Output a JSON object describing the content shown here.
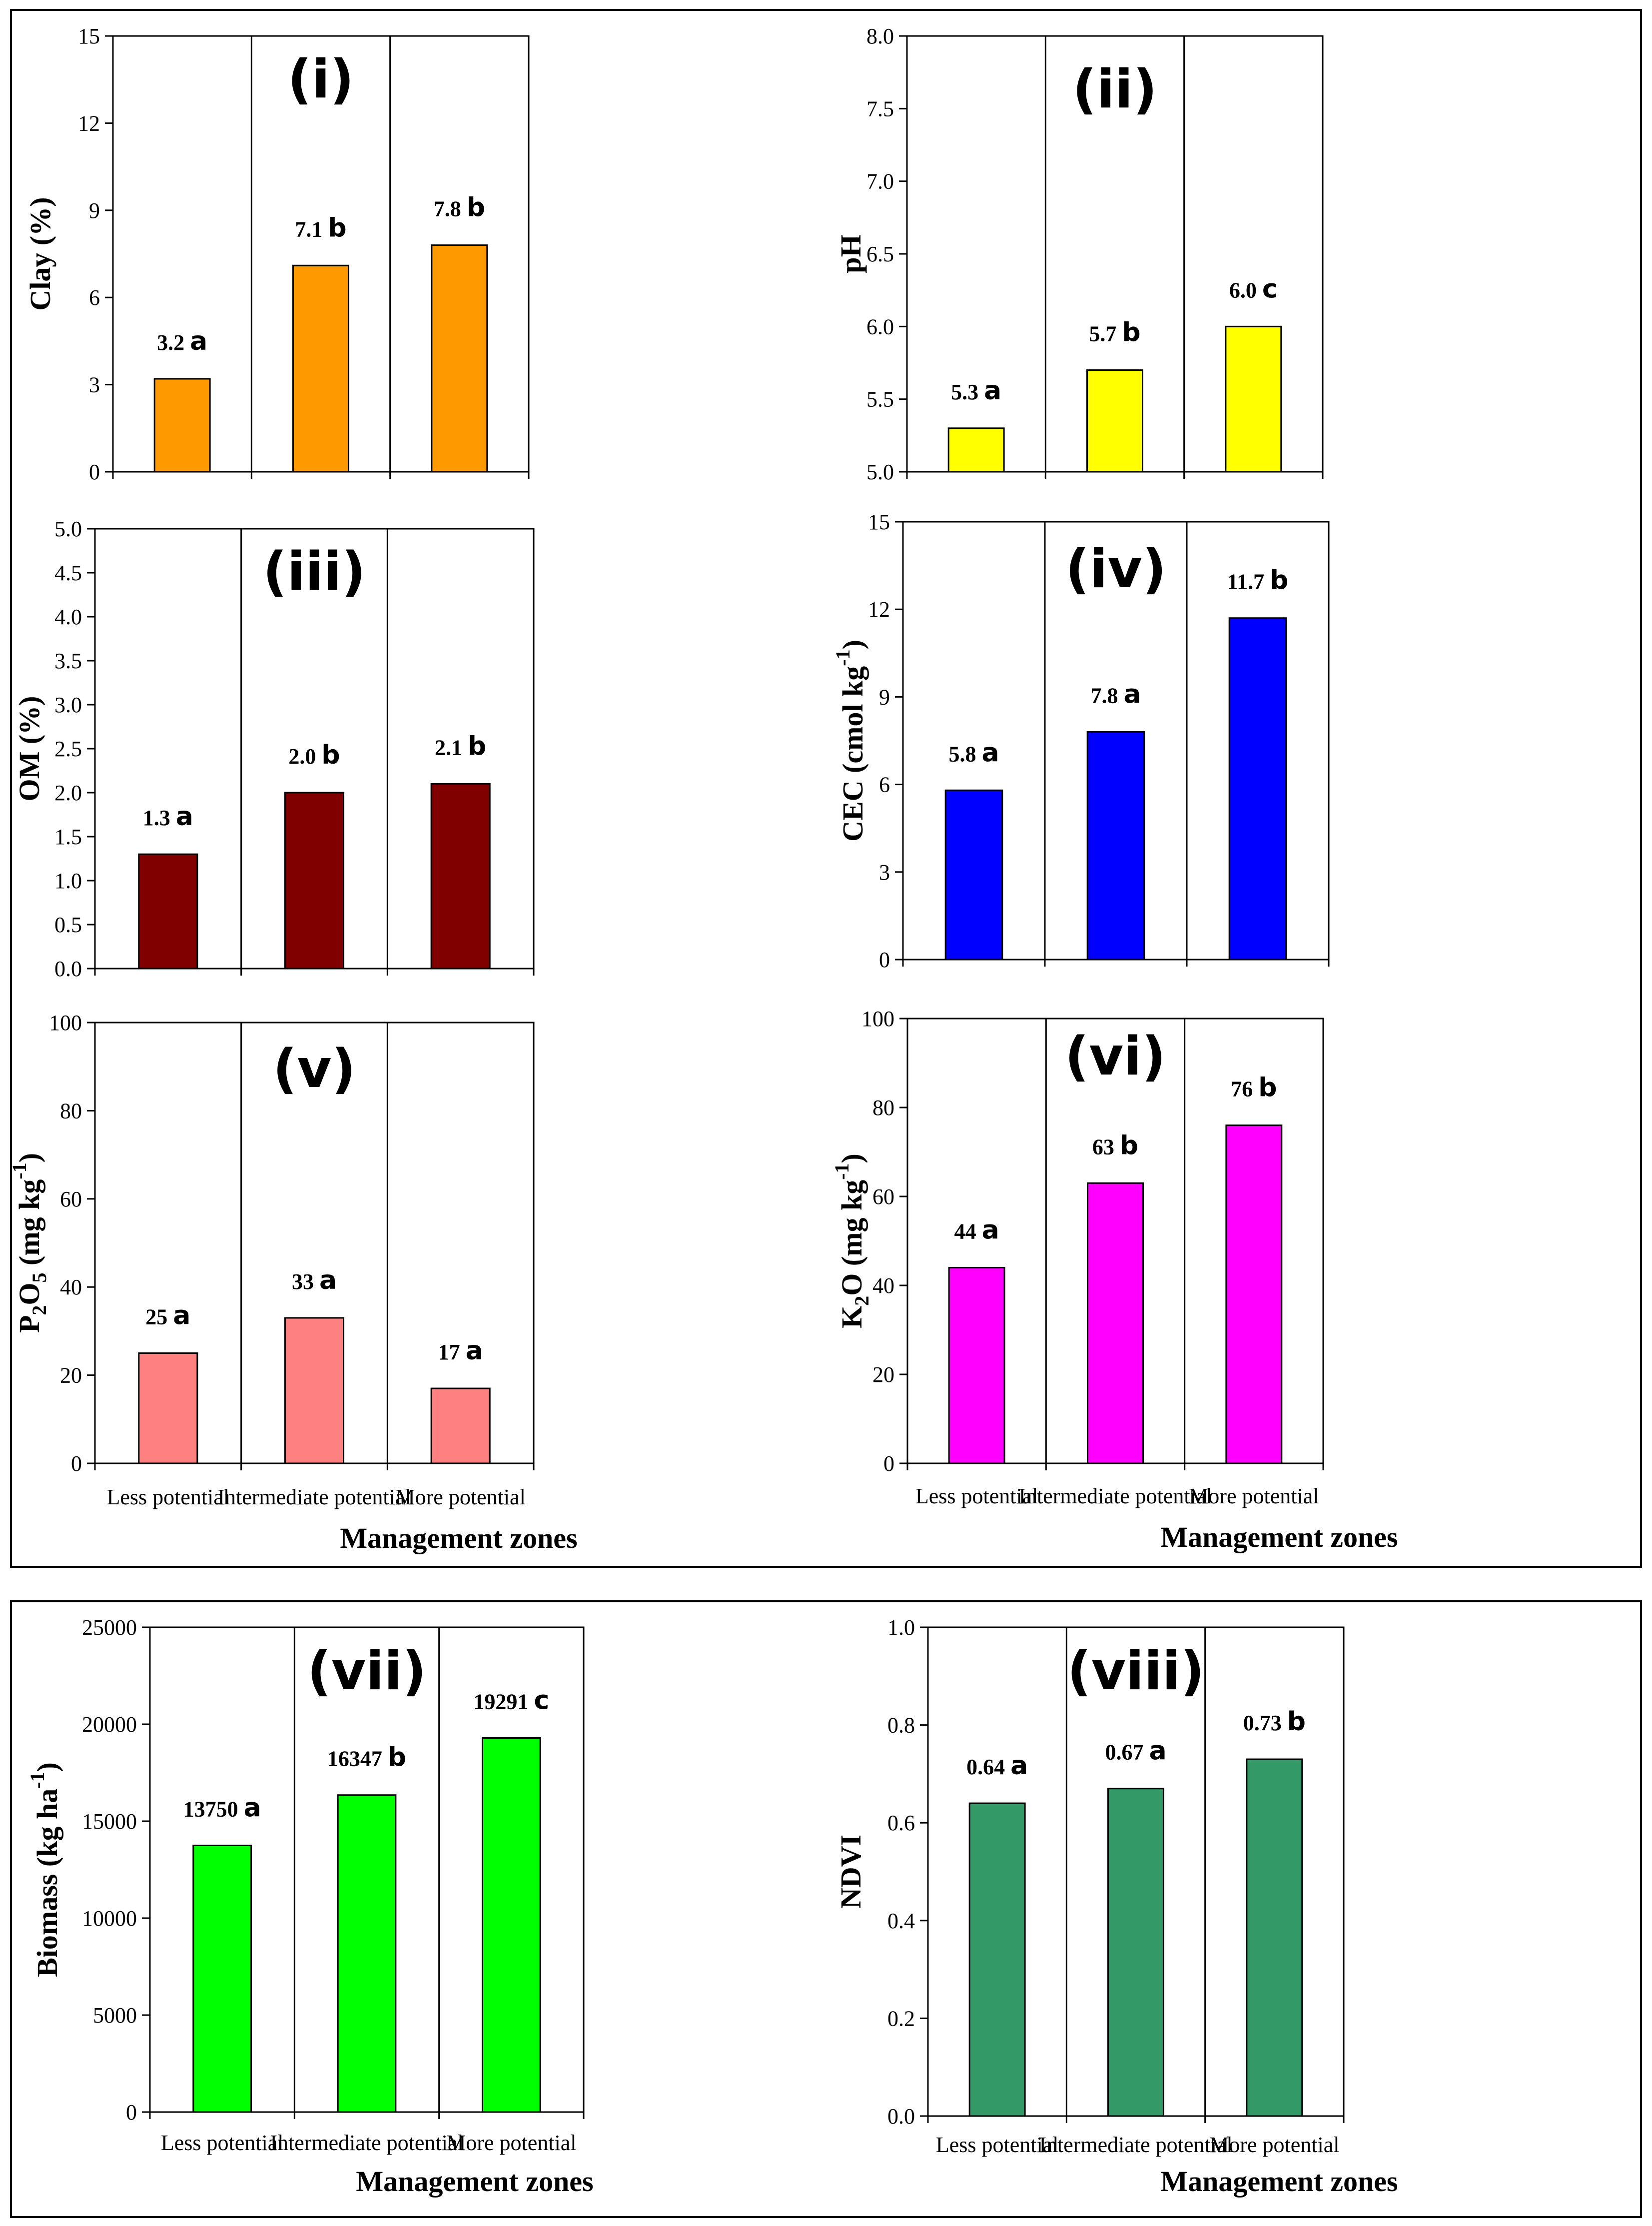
{
  "figure": {
    "xlabel": "Management zones",
    "categories": [
      "Less potential",
      "Intermediate potential",
      "More potential"
    ]
  },
  "chart_data": [
    {
      "panel": "(i)",
      "type": "bar",
      "ylabel": "Clay (%)",
      "ylim": [
        0,
        15
      ],
      "yticks": [
        0,
        3,
        6,
        9,
        12,
        15
      ],
      "tick_decimals": 0,
      "categories": [
        "Less potential",
        "Intermediate potential",
        "More potential"
      ],
      "values": [
        3.2,
        7.1,
        7.8
      ],
      "value_labels": [
        "3.2",
        "7.1",
        "7.8"
      ],
      "letters": [
        "a",
        "b",
        "b"
      ],
      "color": "#FF9900"
    },
    {
      "panel": "(ii)",
      "type": "bar",
      "ylabel": "pH",
      "ylim": [
        5.0,
        8.0
      ],
      "yticks": [
        5.0,
        5.5,
        6.0,
        6.5,
        7.0,
        7.5,
        8.0
      ],
      "tick_decimals": 1,
      "categories": [
        "Less potential",
        "Intermediate potential",
        "More potential"
      ],
      "values": [
        5.3,
        5.7,
        6.0
      ],
      "value_labels": [
        "5.3",
        "5.7",
        "6.0"
      ],
      "letters": [
        "a",
        "b",
        "c"
      ],
      "color": "#FFFF00"
    },
    {
      "panel": "(iii)",
      "type": "bar",
      "ylabel": "OM (%)",
      "ylim": [
        0,
        5.0
      ],
      "yticks": [
        0.0,
        0.5,
        1.0,
        1.5,
        2.0,
        2.5,
        3.0,
        3.5,
        4.0,
        4.5,
        5.0
      ],
      "tick_decimals": 1,
      "categories": [
        "Less potential",
        "Intermediate potential",
        "More potential"
      ],
      "values": [
        1.3,
        2.0,
        2.1
      ],
      "value_labels": [
        "1.3",
        "2.0",
        "2.1"
      ],
      "letters": [
        "a",
        "b",
        "b"
      ],
      "color": "#800000"
    },
    {
      "panel": "(iv)",
      "type": "bar",
      "ylabel": "CEC (cmol kg",
      "ylabel_sup": "-1",
      "ylabel_tail": ")",
      "ylim": [
        0,
        15
      ],
      "yticks": [
        0,
        3,
        6,
        9,
        12,
        15
      ],
      "tick_decimals": 0,
      "categories": [
        "Less potential",
        "Intermediate potential",
        "More potential"
      ],
      "values": [
        5.8,
        7.8,
        11.7
      ],
      "value_labels": [
        "5.8",
        "7.8",
        "11.7"
      ],
      "letters": [
        "a",
        "a",
        "b"
      ],
      "color": "#0000FF"
    },
    {
      "panel": "(v)",
      "type": "bar",
      "ylabel": "P",
      "ylabel_sub": "2",
      "ylabel_mid": "O",
      "ylabel_sub2": "5",
      "ylabel_rest": " (mg kg",
      "ylabel_sup": "-1",
      "ylabel_tail": ")",
      "ylim": [
        0,
        100
      ],
      "yticks": [
        0,
        20,
        40,
        60,
        80,
        100
      ],
      "tick_decimals": 0,
      "categories": [
        "Less potential",
        "Intermediate potential",
        "More potential"
      ],
      "values": [
        25,
        33,
        17
      ],
      "value_labels": [
        "25",
        "33",
        "17"
      ],
      "letters": [
        "a",
        "a",
        "a"
      ],
      "color": "#FF8080"
    },
    {
      "panel": "(vi)",
      "type": "bar",
      "ylabel": "K",
      "ylabel_sub": "2",
      "ylabel_mid": "O",
      "ylabel_rest": " (mg kg",
      "ylabel_sup": "-1",
      "ylabel_tail": ")",
      "ylim": [
        0,
        100
      ],
      "yticks": [
        0,
        20,
        40,
        60,
        80,
        100
      ],
      "tick_decimals": 0,
      "categories": [
        "Less potential",
        "Intermediate potential",
        "More potential"
      ],
      "values": [
        44,
        63,
        76
      ],
      "value_labels": [
        "44",
        "63",
        "76"
      ],
      "letters": [
        "a",
        "b",
        "b"
      ],
      "color": "#FF00FF"
    },
    {
      "panel": "(vii)",
      "type": "bar",
      "ylabel": "Biomass (kg ha",
      "ylabel_sup": "-1",
      "ylabel_tail": ")",
      "ylim": [
        0,
        25000
      ],
      "yticks": [
        0,
        5000,
        10000,
        15000,
        20000,
        25000
      ],
      "tick_decimals": 0,
      "categories": [
        "Less potential",
        "Intermediate potential",
        "More potential"
      ],
      "values": [
        13750,
        16347,
        19291
      ],
      "value_labels": [
        "13750",
        "16347",
        "19291"
      ],
      "letters": [
        "a",
        "b",
        "c"
      ],
      "color": "#00FF00"
    },
    {
      "panel": "(viii)",
      "type": "bar",
      "ylabel": "NDVI",
      "ylim": [
        0,
        1.0
      ],
      "yticks": [
        0.0,
        0.2,
        0.4,
        0.6,
        0.8,
        1.0
      ],
      "tick_decimals": 1,
      "categories": [
        "Less potential",
        "Intermediate potential",
        "More potential"
      ],
      "values": [
        0.64,
        0.67,
        0.73
      ],
      "value_labels": [
        "0.64",
        "0.67",
        "0.73"
      ],
      "letters": [
        "a",
        "a",
        "b"
      ],
      "color": "#339966"
    }
  ]
}
